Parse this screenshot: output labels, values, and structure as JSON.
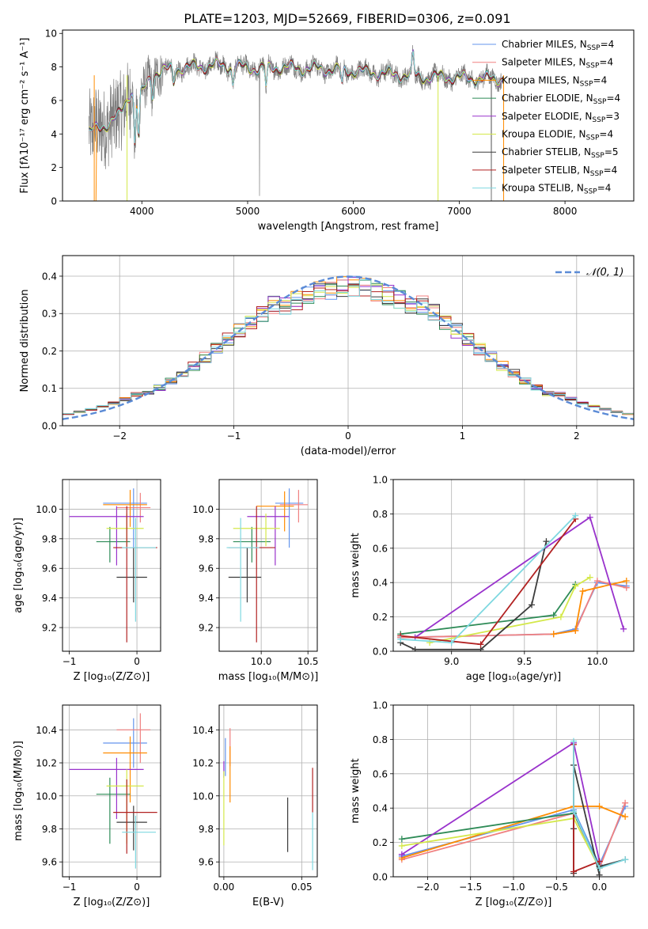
{
  "figure": {
    "title": "PLATE=1203, MJD=52669, FIBERID=0306, z=0.091"
  },
  "colors": {
    "Chabrier MILES": "#6495ed",
    "Salpeter MILES": "#f08080",
    "Kroupa MILES": "#ff8c00",
    "Chabrier ELODIE": "#2e8b57",
    "Salpeter ELODIE": "#9932cc",
    "Kroupa ELODIE": "#d4e84a",
    "Chabrier STELIB": "#3c3c3c",
    "Salpeter STELIB": "#b22222",
    "Kroupa STELIB": "#7fd8e0",
    "data": "#808080",
    "gauss": "#5b8bd6",
    "extra_pink": "#ee82ee"
  },
  "chart_data": [
    {
      "id": "spectrum",
      "type": "line",
      "xlabel": "wavelength [Angstrom, rest frame]",
      "ylabel": "Flux [fλ10⁻¹⁷ erg cm⁻² s⁻¹ A⁻¹]",
      "xlim": [
        3250,
        8650
      ],
      "ylim": [
        0,
        10.2
      ],
      "xticks": [
        4000,
        5000,
        6000,
        7000,
        8000
      ],
      "yticks": [
        0,
        2,
        4,
        6,
        8,
        10
      ],
      "grid": false,
      "legend_position": "top-right",
      "legend": [
        {
          "name": "Chabrier MILES",
          "nssp": "4"
        },
        {
          "name": "Salpeter MILES",
          "nssp": "4"
        },
        {
          "name": "Kroupa MILES",
          "nssp": "4"
        },
        {
          "name": "Chabrier ELODIE",
          "nssp": "4"
        },
        {
          "name": "Salpeter ELODIE",
          "nssp": "3"
        },
        {
          "name": "Kroupa ELODIE",
          "nssp": "4"
        },
        {
          "name": "Chabrier STELIB",
          "nssp": "5"
        },
        {
          "name": "Salpeter STELIB",
          "nssp": "4"
        },
        {
          "name": "Kroupa STELIB",
          "nssp": "4"
        }
      ],
      "continuum": {
        "x": [
          3500,
          3650,
          3800,
          3900,
          4000,
          4100,
          4300,
          4500,
          4700,
          4900,
          5100,
          5300,
          5500,
          5700,
          5900,
          6100,
          6300,
          6500,
          6700,
          6900,
          7100,
          7300,
          7400
        ],
        "y": [
          4.1,
          4.5,
          5.2,
          6.6,
          6.4,
          7.6,
          7.9,
          8.0,
          8.1,
          8.0,
          7.9,
          8.0,
          7.9,
          7.9,
          7.8,
          7.7,
          7.6,
          7.5,
          7.4,
          7.4,
          7.3,
          7.3,
          7.3
        ]
      }
    },
    {
      "id": "residuals",
      "type": "bar",
      "xlabel": "(data-model)/error",
      "ylabel": "Normed distribution",
      "xlim": [
        -2.5,
        2.5
      ],
      "ylim": [
        0,
        0.455
      ],
      "xticks": [
        -2,
        -1,
        0,
        1,
        2
      ],
      "yticks": [
        0.0,
        0.1,
        0.2,
        0.3,
        0.4
      ],
      "grid": true,
      "legend_position": "top-right",
      "legend_label": "𝒩(0, 1)",
      "bin_width": 0.1,
      "gauss": {
        "mu": 0,
        "sigma": 1
      }
    },
    {
      "id": "age-vs-Z",
      "type": "scatter",
      "xlabel": "Z [log₁₀(Z/Z⊙)]",
      "ylabel": "age  [log₁₀(age/yr)]",
      "xlim": [
        -1.1,
        0.35
      ],
      "ylim": [
        9.04,
        10.2
      ],
      "xticks": [
        -1,
        0
      ],
      "yticks": [
        9.2,
        9.4,
        9.6,
        9.8,
        10.0
      ],
      "grid": true,
      "points": [
        {
          "model": "Chabrier MILES",
          "x": -0.05,
          "y": 10.04,
          "xerr": [
            0.45,
            0.2
          ],
          "yerr": [
            0.3,
            0.1
          ]
        },
        {
          "model": "Salpeter MILES",
          "x": 0.05,
          "y": 10.01,
          "xerr": [
            0.35,
            0.15
          ],
          "yerr": [
            0.1,
            0.1
          ]
        },
        {
          "model": "Kroupa MILES",
          "x": -0.1,
          "y": 10.03,
          "xerr": [
            0.4,
            0.25
          ],
          "yerr": [
            0.15,
            0.1
          ]
        },
        {
          "model": "Chabrier ELODIE",
          "x": -0.4,
          "y": 9.78,
          "xerr": [
            0.2,
            0.3
          ],
          "yerr": [
            0.14,
            0.1
          ]
        },
        {
          "model": "Salpeter ELODIE",
          "x": -0.3,
          "y": 9.95,
          "xerr": [
            0.7,
            0.4
          ],
          "yerr": [
            0.33,
            0.07
          ]
        },
        {
          "model": "Kroupa ELODIE",
          "x": -0.15,
          "y": 9.87,
          "xerr": [
            0.3,
            0.25
          ],
          "yerr": [
            0.12,
            0.1
          ]
        },
        {
          "model": "Chabrier STELIB",
          "x": -0.05,
          "y": 9.54,
          "xerr": [
            0.25,
            0.2
          ],
          "yerr": [
            0.17,
            0.2
          ]
        },
        {
          "model": "Salpeter STELIB",
          "x": -0.15,
          "y": 9.74,
          "xerr": [
            0.2,
            0.45
          ],
          "yerr": [
            0.64,
            0.28
          ]
        },
        {
          "model": "Kroupa STELIB",
          "x": -0.02,
          "y": 9.74,
          "xerr": [
            0.2,
            0.3
          ],
          "yerr": [
            0.5,
            0.2
          ]
        }
      ]
    },
    {
      "id": "age-vs-mass",
      "type": "scatter",
      "xlabel": "mass [log₁₀(M/M⊙)]",
      "ylabel": "",
      "xlim": [
        9.55,
        10.6
      ],
      "ylim": [
        9.04,
        10.2
      ],
      "xticks": [
        10.0,
        10.5
      ],
      "yticks": [
        9.2,
        9.4,
        9.6,
        9.8,
        10.0
      ],
      "grid": true,
      "points": [
        {
          "model": "Chabrier MILES",
          "x": 10.3,
          "y": 10.04,
          "xerr": [
            0.15,
            0.15
          ],
          "yerr": [
            0.3,
            0.1
          ]
        },
        {
          "model": "Salpeter MILES",
          "x": 10.4,
          "y": 10.03,
          "xerr": [
            0.2,
            0.1
          ],
          "yerr": [
            0.12,
            0.1
          ]
        },
        {
          "model": "Kroupa MILES",
          "x": 10.25,
          "y": 10.02,
          "xerr": [
            0.3,
            0.1
          ],
          "yerr": [
            0.17,
            0.1
          ]
        },
        {
          "model": "Chabrier ELODIE",
          "x": 9.9,
          "y": 9.78,
          "xerr": [
            0.2,
            0.2
          ],
          "yerr": [
            0.14,
            0.1
          ]
        },
        {
          "model": "Salpeter ELODIE",
          "x": 10.15,
          "y": 9.95,
          "xerr": [
            0.3,
            0.15
          ],
          "yerr": [
            0.33,
            0.07
          ]
        },
        {
          "model": "Kroupa ELODIE",
          "x": 10.05,
          "y": 9.87,
          "xerr": [
            0.35,
            0.15
          ],
          "yerr": [
            0.12,
            0.1
          ]
        },
        {
          "model": "Chabrier STELIB",
          "x": 9.85,
          "y": 9.54,
          "xerr": [
            0.2,
            0.15
          ],
          "yerr": [
            0.17,
            0.2
          ]
        },
        {
          "model": "Salpeter STELIB",
          "x": 9.95,
          "y": 9.74,
          "xerr": [
            0.3,
            0.2
          ],
          "yerr": [
            0.64,
            0.28
          ]
        },
        {
          "model": "Kroupa STELIB",
          "x": 9.78,
          "y": 9.74,
          "xerr": [
            0.15,
            0.2
          ],
          "yerr": [
            0.5,
            0.2
          ]
        }
      ]
    },
    {
      "id": "mass-weight-vs-age",
      "type": "line",
      "xlabel": "age  [log₁₀(age/yr)]",
      "ylabel": "mass weight",
      "xlim": [
        8.6,
        10.25
      ],
      "ylim": [
        0,
        1.0
      ],
      "xticks": [
        9.0,
        9.5,
        10.0
      ],
      "yticks": [
        0.0,
        0.2,
        0.4,
        0.6,
        0.8,
        1.0
      ],
      "grid": true,
      "series": [
        {
          "model": "Chabrier MILES",
          "x": [
            8.65,
            9.7,
            9.85,
            10.0,
            10.2
          ],
          "y": [
            0.08,
            0.1,
            0.13,
            0.4,
            0.38
          ]
        },
        {
          "model": "Salpeter MILES",
          "x": [
            8.65,
            9.7,
            9.85,
            10.0,
            10.2
          ],
          "y": [
            0.08,
            0.1,
            0.12,
            0.41,
            0.37
          ]
        },
        {
          "model": "Kroupa MILES",
          "x": [
            9.7,
            9.85,
            9.9,
            10.2
          ],
          "y": [
            0.1,
            0.12,
            0.35,
            0.41
          ]
        },
        {
          "model": "Chabrier ELODIE",
          "x": [
            8.65,
            9.7,
            9.85
          ],
          "y": [
            0.1,
            0.21,
            0.39
          ]
        },
        {
          "model": "Salpeter ELODIE",
          "x": [
            8.75,
            9.95,
            10.18
          ],
          "y": [
            0.08,
            0.78,
            0.13
          ]
        },
        {
          "model": "Kroupa ELODIE",
          "x": [
            8.85,
            9.75,
            9.85,
            9.95
          ],
          "y": [
            0.05,
            0.2,
            0.38,
            0.43
          ]
        },
        {
          "model": "Chabrier STELIB",
          "x": [
            8.65,
            8.75,
            9.2,
            9.55,
            9.65
          ],
          "y": [
            0.05,
            0.01,
            0.01,
            0.27,
            0.64
          ]
        },
        {
          "model": "Salpeter STELIB",
          "x": [
            8.65,
            9.2,
            9.85
          ],
          "y": [
            0.09,
            0.04,
            0.77
          ]
        },
        {
          "model": "Kroupa STELIB",
          "x": [
            8.65,
            9.0,
            9.85
          ],
          "y": [
            0.07,
            0.05,
            0.79
          ]
        }
      ]
    },
    {
      "id": "mass-vs-Z",
      "type": "scatter",
      "xlabel": "Z [log₁₀(Z/Z⊙)]",
      "ylabel": "mass [log₁₀(M/M⊙)]",
      "xlim": [
        -1.1,
        0.35
      ],
      "ylim": [
        9.51,
        10.55
      ],
      "xticks": [
        -1,
        0
      ],
      "yticks": [
        9.6,
        9.8,
        10.0,
        10.2,
        10.4
      ],
      "grid": true,
      "points": [
        {
          "model": "Chabrier MILES",
          "x": -0.05,
          "y": 10.32,
          "xerr": [
            0.45,
            0.2
          ],
          "yerr": [
            0.15,
            0.15
          ]
        },
        {
          "model": "Salpeter MILES",
          "x": 0.05,
          "y": 10.4,
          "xerr": [
            0.35,
            0.15
          ],
          "yerr": [
            0.2,
            0.1
          ]
        },
        {
          "model": "Kroupa MILES",
          "x": -0.1,
          "y": 10.26,
          "xerr": [
            0.4,
            0.25
          ],
          "yerr": [
            0.3,
            0.1
          ]
        },
        {
          "model": "Chabrier ELODIE",
          "x": -0.4,
          "y": 10.01,
          "xerr": [
            0.2,
            0.3
          ],
          "yerr": [
            0.3,
            0.1
          ]
        },
        {
          "model": "Salpeter ELODIE",
          "x": -0.3,
          "y": 10.16,
          "xerr": [
            0.7,
            0.4
          ],
          "yerr": [
            0.3,
            0.07
          ]
        },
        {
          "model": "Kroupa ELODIE",
          "x": -0.15,
          "y": 10.06,
          "xerr": [
            0.3,
            0.25
          ],
          "yerr": [
            0.35,
            0.1
          ]
        },
        {
          "model": "Chabrier STELIB",
          "x": -0.05,
          "y": 9.84,
          "xerr": [
            0.25,
            0.2
          ],
          "yerr": [
            0.17,
            0.1
          ]
        },
        {
          "model": "Salpeter STELIB",
          "x": -0.15,
          "y": 9.9,
          "xerr": [
            0.2,
            0.45
          ],
          "yerr": [
            0.25,
            0.2
          ]
        },
        {
          "model": "Kroupa STELIB",
          "x": -0.02,
          "y": 9.78,
          "xerr": [
            0.2,
            0.3
          ],
          "yerr": [
            0.22,
            0.1
          ]
        }
      ]
    },
    {
      "id": "mass-vs-EBV",
      "type": "scatter",
      "xlabel": "E(B-V)",
      "ylabel": "",
      "xlim": [
        -0.003,
        0.06
      ],
      "ylim": [
        9.51,
        10.55
      ],
      "xticks": [
        0.0,
        0.05
      ],
      "yticks": [
        9.6,
        9.8,
        10.0,
        10.2,
        10.4
      ],
      "grid": true,
      "points": [
        {
          "model": "Chabrier MILES",
          "x": 0.001,
          "y": 10.25,
          "xerr": [
            0,
            0
          ],
          "yerr": [
            0.13,
            0.1
          ]
        },
        {
          "model": "Salpeter MILES",
          "x": 0.004,
          "y": 10.29,
          "xerr": [
            0,
            0
          ],
          "yerr": [
            0.11,
            0.12
          ]
        },
        {
          "model": "Kroupa MILES",
          "x": 0.004,
          "y": 10.1,
          "xerr": [
            0,
            0
          ],
          "yerr": [
            0.14,
            0.2
          ]
        },
        {
          "model": "Salpeter ELODIE",
          "x": 0.0,
          "y": 10.16,
          "xerr": [
            0,
            0
          ],
          "yerr": [
            0.05,
            0.05
          ]
        },
        {
          "model": "Kroupa ELODIE",
          "x": 0.0,
          "y": 9.85,
          "xerr": [
            0,
            0
          ],
          "yerr": [
            0.15,
            0.3
          ]
        },
        {
          "model": "Chabrier STELIB",
          "x": 0.041,
          "y": 9.83,
          "xerr": [
            0,
            0
          ],
          "yerr": [
            0.17,
            0.16
          ]
        },
        {
          "model": "Salpeter STELIB",
          "x": 0.057,
          "y": 10.03,
          "xerr": [
            0,
            0
          ],
          "yerr": [
            0.13,
            0.14
          ]
        },
        {
          "model": "Kroupa STELIB",
          "x": 0.057,
          "y": 9.73,
          "xerr": [
            0,
            0
          ],
          "yerr": [
            0.18,
            0.17
          ]
        }
      ]
    },
    {
      "id": "mass-weight-vs-Z",
      "type": "line",
      "xlabel": "Z [log₁₀(Z/Z⊙)]",
      "ylabel": "mass weight",
      "xlim": [
        -2.4,
        0.4
      ],
      "ylim": [
        0,
        1.0
      ],
      "xticks": [
        -2.0,
        -1.5,
        -1.0,
        -0.5,
        0.0
      ],
      "yticks": [
        0.0,
        0.2,
        0.4,
        0.6,
        0.8,
        1.0
      ],
      "grid": true,
      "series": [
        {
          "model": "Chabrier MILES",
          "x": [
            -2.3,
            -0.3,
            0.0,
            0.3
          ],
          "y": [
            0.12,
            0.39,
            0.07,
            0.41
          ]
        },
        {
          "model": "Salpeter MILES",
          "x": [
            -2.3,
            -0.3,
            0.0,
            0.3
          ],
          "y": [
            0.1,
            0.37,
            0.05,
            0.43
          ]
        },
        {
          "model": "Kroupa MILES",
          "x": [
            -2.3,
            -0.3,
            0.0,
            0.3
          ],
          "y": [
            0.11,
            0.41,
            0.41,
            0.35
          ]
        },
        {
          "model": "Chabrier ELODIE",
          "x": [
            -2.3,
            -0.3,
            0.0
          ],
          "y": [
            0.22,
            0.37,
            0.06
          ]
        },
        {
          "model": "Salpeter ELODIE",
          "x": [
            -2.3,
            -0.3,
            0.0
          ],
          "y": [
            0.13,
            0.78,
            0.09
          ]
        },
        {
          "model": "Kroupa ELODIE",
          "x": [
            -2.3,
            -0.3,
            0.0
          ],
          "y": [
            0.18,
            0.34,
            0.05
          ]
        },
        {
          "model": "Chabrier STELIB",
          "x": [
            -0.3,
            -0.3,
            -0.3,
            0.0,
            0.0,
            0.3
          ],
          "y": [
            0.02,
            0.28,
            0.65,
            0.01,
            0.06,
            0.1
          ]
        },
        {
          "model": "Salpeter STELIB",
          "x": [
            -0.3,
            -0.3,
            0.0
          ],
          "y": [
            0.77,
            0.03,
            0.09
          ]
        },
        {
          "model": "Kroupa STELIB",
          "x": [
            -0.3,
            -0.3,
            0.0,
            0.3
          ],
          "y": [
            0.79,
            0.38,
            0.05,
            0.1
          ]
        }
      ]
    }
  ]
}
